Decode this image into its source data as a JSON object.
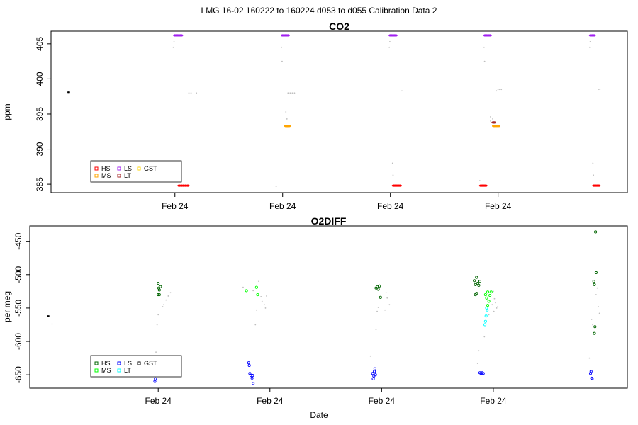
{
  "page": {
    "title": "LMG   16-02    160222 to 160224    d053 to d055   Calibration Data 2",
    "xlabel": "Date"
  },
  "colors": {
    "HS": "#ff0000",
    "MS": "#ffa500",
    "LS": "#a020f0",
    "LT": "#a52a2a",
    "GST": "#ffd700",
    "HS2": "#006400",
    "MS2": "#00ff00",
    "LS2": "#0000ff",
    "LT2": "#00ffff",
    "GST2": "#000000",
    "other": "#bebebe",
    "black": "#000000"
  },
  "chart_data": [
    {
      "type": "scatter",
      "title": "CO2",
      "ylabel": "ppm",
      "xticks": [
        "Feb 24",
        "Feb 24",
        "Feb 24",
        "Feb 24"
      ],
      "ylim": [
        383.8,
        406.8
      ],
      "yticks": [
        385,
        390,
        395,
        400,
        405
      ],
      "legend": {
        "placement": "bottom-left",
        "entries": [
          {
            "label": "HS",
            "key": "HS"
          },
          {
            "label": "MS",
            "key": "MS"
          },
          {
            "label": "LS",
            "key": "LS"
          },
          {
            "label": "LT",
            "key": "LT"
          },
          {
            "label": "GST",
            "key": "GST"
          }
        ]
      },
      "points": [
        {
          "x": 0.01,
          "y": 398.1,
          "c": "black"
        },
        {
          "x": 0.018,
          "y": 398.1,
          "c": "black"
        },
        {
          "x": 1.0,
          "y": 406.2,
          "c": "LS"
        },
        {
          "x": 1.012,
          "y": 406.2,
          "c": "LS"
        },
        {
          "x": 1.024,
          "y": 406.2,
          "c": "LS"
        },
        {
          "x": 1.036,
          "y": 406.2,
          "c": "LS"
        },
        {
          "x": 1.05,
          "y": 406.2,
          "c": "LS"
        },
        {
          "x": 1.06,
          "y": 406.2,
          "c": "LS"
        },
        {
          "x": 0.985,
          "y": 404.5,
          "c": "other"
        },
        {
          "x": 0.992,
          "y": 405.3,
          "c": "other"
        },
        {
          "x": 1.13,
          "y": 398.0,
          "c": "other"
        },
        {
          "x": 1.15,
          "y": 398.0,
          "c": "other"
        },
        {
          "x": 1.2,
          "y": 398.0,
          "c": "other"
        },
        {
          "x": 1.04,
          "y": 384.8,
          "c": "HS"
        },
        {
          "x": 1.06,
          "y": 384.8,
          "c": "HS"
        },
        {
          "x": 1.08,
          "y": 384.8,
          "c": "HS"
        },
        {
          "x": 1.1,
          "y": 384.8,
          "c": "HS"
        },
        {
          "x": 1.12,
          "y": 384.8,
          "c": "HS"
        },
        {
          "x": 2.0,
          "y": 406.2,
          "c": "LS"
        },
        {
          "x": 2.012,
          "y": 406.2,
          "c": "LS"
        },
        {
          "x": 2.024,
          "y": 406.2,
          "c": "LS"
        },
        {
          "x": 2.036,
          "y": 406.2,
          "c": "LS"
        },
        {
          "x": 2.05,
          "y": 406.2,
          "c": "LS"
        },
        {
          "x": 1.99,
          "y": 404.5,
          "c": "other"
        },
        {
          "x": 1.995,
          "y": 402.5,
          "c": "other"
        },
        {
          "x": 2.03,
          "y": 395.3,
          "c": "other"
        },
        {
          "x": 2.04,
          "y": 394.3,
          "c": "other"
        },
        {
          "x": 2.03,
          "y": 393.3,
          "c": "MS"
        },
        {
          "x": 2.04,
          "y": 393.3,
          "c": "MS"
        },
        {
          "x": 2.05,
          "y": 393.3,
          "c": "MS"
        },
        {
          "x": 2.06,
          "y": 393.3,
          "c": "MS"
        },
        {
          "x": 1.94,
          "y": 384.7,
          "c": "other"
        },
        {
          "x": 2.05,
          "y": 398.0,
          "c": "other"
        },
        {
          "x": 2.07,
          "y": 398.0,
          "c": "other"
        },
        {
          "x": 2.09,
          "y": 398.0,
          "c": "other"
        },
        {
          "x": 2.11,
          "y": 398.0,
          "c": "other"
        },
        {
          "x": 3.0,
          "y": 406.2,
          "c": "LS"
        },
        {
          "x": 3.012,
          "y": 406.2,
          "c": "LS"
        },
        {
          "x": 3.024,
          "y": 406.2,
          "c": "LS"
        },
        {
          "x": 3.036,
          "y": 406.2,
          "c": "LS"
        },
        {
          "x": 3.05,
          "y": 406.2,
          "c": "LS"
        },
        {
          "x": 2.99,
          "y": 404.5,
          "c": "other"
        },
        {
          "x": 2.995,
          "y": 405.3,
          "c": "other"
        },
        {
          "x": 3.1,
          "y": 398.3,
          "c": "other"
        },
        {
          "x": 3.115,
          "y": 398.3,
          "c": "other"
        },
        {
          "x": 3.02,
          "y": 388.0,
          "c": "other"
        },
        {
          "x": 3.025,
          "y": 386.3,
          "c": "other"
        },
        {
          "x": 3.03,
          "y": 384.8,
          "c": "HS"
        },
        {
          "x": 3.045,
          "y": 384.8,
          "c": "HS"
        },
        {
          "x": 3.06,
          "y": 384.8,
          "c": "HS"
        },
        {
          "x": 3.075,
          "y": 384.8,
          "c": "HS"
        },
        {
          "x": 3.09,
          "y": 384.8,
          "c": "HS"
        },
        {
          "x": 3.84,
          "y": 384.8,
          "c": "HS"
        },
        {
          "x": 3.855,
          "y": 384.8,
          "c": "HS"
        },
        {
          "x": 3.87,
          "y": 384.8,
          "c": "HS"
        },
        {
          "x": 3.885,
          "y": 384.8,
          "c": "HS"
        },
        {
          "x": 3.83,
          "y": 385.5,
          "c": "other"
        },
        {
          "x": 3.88,
          "y": 406.2,
          "c": "LS"
        },
        {
          "x": 3.895,
          "y": 406.2,
          "c": "LS"
        },
        {
          "x": 3.91,
          "y": 406.2,
          "c": "LS"
        },
        {
          "x": 3.925,
          "y": 406.2,
          "c": "LS"
        },
        {
          "x": 3.87,
          "y": 404.5,
          "c": "other"
        },
        {
          "x": 3.875,
          "y": 402.5,
          "c": "other"
        },
        {
          "x": 3.93,
          "y": 394.6,
          "c": "other"
        },
        {
          "x": 3.95,
          "y": 394.3,
          "c": "other"
        },
        {
          "x": 3.93,
          "y": 394.0,
          "c": "other"
        },
        {
          "x": 3.955,
          "y": 393.8,
          "c": "LT"
        },
        {
          "x": 3.965,
          "y": 393.8,
          "c": "LT"
        },
        {
          "x": 3.96,
          "y": 393.3,
          "c": "MS"
        },
        {
          "x": 3.975,
          "y": 393.3,
          "c": "MS"
        },
        {
          "x": 3.99,
          "y": 393.3,
          "c": "MS"
        },
        {
          "x": 4.005,
          "y": 393.3,
          "c": "MS"
        },
        {
          "x": 3.985,
          "y": 398.3,
          "c": "other"
        },
        {
          "x": 4.0,
          "y": 398.5,
          "c": "other"
        },
        {
          "x": 4.015,
          "y": 398.5,
          "c": "other"
        },
        {
          "x": 4.03,
          "y": 398.5,
          "c": "other"
        },
        {
          "x": 4.86,
          "y": 406.2,
          "c": "LS"
        },
        {
          "x": 4.875,
          "y": 406.2,
          "c": "LS"
        },
        {
          "x": 4.89,
          "y": 406.2,
          "c": "LS"
        },
        {
          "x": 4.85,
          "y": 404.5,
          "c": "other"
        },
        {
          "x": 4.855,
          "y": 405.3,
          "c": "other"
        },
        {
          "x": 4.93,
          "y": 398.5,
          "c": "other"
        },
        {
          "x": 4.945,
          "y": 398.5,
          "c": "other"
        },
        {
          "x": 4.88,
          "y": 388.0,
          "c": "other"
        },
        {
          "x": 4.885,
          "y": 386.3,
          "c": "other"
        },
        {
          "x": 4.89,
          "y": 384.8,
          "c": "HS"
        },
        {
          "x": 4.905,
          "y": 384.8,
          "c": "HS"
        },
        {
          "x": 4.92,
          "y": 384.8,
          "c": "HS"
        },
        {
          "x": 4.935,
          "y": 384.8,
          "c": "HS"
        }
      ]
    },
    {
      "type": "scatter",
      "title": "O2DIFF",
      "ylabel": "per meg",
      "xticks": [
        "Feb 24",
        "Feb 24",
        "Feb 24",
        "Feb 24"
      ],
      "ylim": [
        -670,
        -427
      ],
      "yticks": [
        -450,
        -500,
        -550,
        -600,
        -650
      ],
      "legend": {
        "placement": "bottom-left",
        "entries": [
          {
            "label": "HS",
            "key": "HS2"
          },
          {
            "label": "MS",
            "key": "MS2"
          },
          {
            "label": "LS",
            "key": "LS2"
          },
          {
            "label": "LT",
            "key": "LT2"
          },
          {
            "label": "GST",
            "key": "GST2"
          }
        ]
      },
      "points": [
        {
          "x": 0.01,
          "y": -562,
          "c": "black"
        },
        {
          "x": 0.018,
          "y": -562,
          "c": "black"
        },
        {
          "x": 0.05,
          "y": -574,
          "c": "other"
        },
        {
          "x": 0.97,
          "y": -660,
          "c": "LS2"
        },
        {
          "x": 0.975,
          "y": -656,
          "c": "LS2"
        },
        {
          "x": 0.98,
          "y": -616,
          "c": "other"
        },
        {
          "x": 0.99,
          "y": -575,
          "c": "other"
        },
        {
          "x": 1.0,
          "y": -513,
          "c": "HS2"
        },
        {
          "x": 1.005,
          "y": -520,
          "c": "HS2"
        },
        {
          "x": 1.01,
          "y": -523,
          "c": "HS2"
        },
        {
          "x": 1.02,
          "y": -518,
          "c": "HS2"
        },
        {
          "x": 1.0,
          "y": -530,
          "c": "HS2"
        },
        {
          "x": 1.01,
          "y": -530,
          "c": "HS2"
        },
        {
          "x": 1.0,
          "y": -560,
          "c": "other"
        },
        {
          "x": 1.05,
          "y": -545,
          "c": "other"
        },
        {
          "x": 1.07,
          "y": -538,
          "c": "other"
        },
        {
          "x": 1.09,
          "y": -532,
          "c": "other"
        },
        {
          "x": 1.11,
          "y": -527,
          "c": "other"
        },
        {
          "x": 1.04,
          "y": -548,
          "c": "other"
        },
        {
          "x": 1.76,
          "y": -519,
          "c": "other"
        },
        {
          "x": 1.79,
          "y": -524,
          "c": "MS2"
        },
        {
          "x": 1.85,
          "y": -524,
          "c": "other"
        },
        {
          "x": 1.88,
          "y": -519,
          "c": "MS2"
        },
        {
          "x": 1.89,
          "y": -530,
          "c": "MS2"
        },
        {
          "x": 1.9,
          "y": -510,
          "c": "other"
        },
        {
          "x": 1.92,
          "y": -533,
          "c": "other"
        },
        {
          "x": 1.93,
          "y": -540,
          "c": "other"
        },
        {
          "x": 1.95,
          "y": -545,
          "c": "other"
        },
        {
          "x": 1.96,
          "y": -550,
          "c": "other"
        },
        {
          "x": 1.97,
          "y": -532,
          "c": "other"
        },
        {
          "x": 1.88,
          "y": -553,
          "c": "other"
        },
        {
          "x": 1.87,
          "y": -575,
          "c": "other"
        },
        {
          "x": 1.81,
          "y": -632,
          "c": "LS2"
        },
        {
          "x": 1.815,
          "y": -636,
          "c": "LS2"
        },
        {
          "x": 1.82,
          "y": -648,
          "c": "LS2"
        },
        {
          "x": 1.83,
          "y": -651,
          "c": "LS2"
        },
        {
          "x": 1.84,
          "y": -655,
          "c": "LS2"
        },
        {
          "x": 1.845,
          "y": -651,
          "c": "LS2"
        },
        {
          "x": 1.85,
          "y": -663,
          "c": "LS2"
        },
        {
          "x": 2.9,
          "y": -622,
          "c": "other"
        },
        {
          "x": 2.92,
          "y": -648,
          "c": "LS2"
        },
        {
          "x": 2.93,
          "y": -652,
          "c": "LS2"
        },
        {
          "x": 2.94,
          "y": -641,
          "c": "LS2"
        },
        {
          "x": 2.935,
          "y": -645,
          "c": "LS2"
        },
        {
          "x": 2.945,
          "y": -650,
          "c": "LS2"
        },
        {
          "x": 2.925,
          "y": -656,
          "c": "LS2"
        },
        {
          "x": 2.95,
          "y": -582,
          "c": "other"
        },
        {
          "x": 2.96,
          "y": -555,
          "c": "other"
        },
        {
          "x": 2.97,
          "y": -549,
          "c": "other"
        },
        {
          "x": 2.95,
          "y": -520,
          "c": "HS2"
        },
        {
          "x": 2.96,
          "y": -518,
          "c": "HS2"
        },
        {
          "x": 2.97,
          "y": -522,
          "c": "HS2"
        },
        {
          "x": 2.98,
          "y": -517,
          "c": "HS2"
        },
        {
          "x": 2.99,
          "y": -534,
          "c": "HS2"
        },
        {
          "x": 3.03,
          "y": -553,
          "c": "other"
        },
        {
          "x": 3.05,
          "y": -535,
          "c": "other"
        },
        {
          "x": 3.07,
          "y": -545,
          "c": "other"
        },
        {
          "x": 3.04,
          "y": -527,
          "c": "other"
        },
        {
          "x": 3.83,
          "y": -509,
          "c": "HS2"
        },
        {
          "x": 3.84,
          "y": -515,
          "c": "HS2"
        },
        {
          "x": 3.85,
          "y": -504,
          "c": "HS2"
        },
        {
          "x": 3.86,
          "y": -513,
          "c": "HS2"
        },
        {
          "x": 3.87,
          "y": -516,
          "c": "HS2"
        },
        {
          "x": 3.88,
          "y": -510,
          "c": "HS2"
        },
        {
          "x": 3.84,
          "y": -530,
          "c": "HS2"
        },
        {
          "x": 3.85,
          "y": -528,
          "c": "HS2"
        },
        {
          "x": 3.87,
          "y": -614,
          "c": "other"
        },
        {
          "x": 3.86,
          "y": -633,
          "c": "other"
        },
        {
          "x": 3.88,
          "y": -647,
          "c": "LS2"
        },
        {
          "x": 3.89,
          "y": -648,
          "c": "LS2"
        },
        {
          "x": 3.9,
          "y": -647,
          "c": "LS2"
        },
        {
          "x": 3.91,
          "y": -648,
          "c": "LS2"
        },
        {
          "x": 3.92,
          "y": -593,
          "c": "other"
        },
        {
          "x": 3.93,
          "y": -530,
          "c": "MS2"
        },
        {
          "x": 3.94,
          "y": -535,
          "c": "MS2"
        },
        {
          "x": 3.95,
          "y": -526,
          "c": "MS2"
        },
        {
          "x": 3.96,
          "y": -540,
          "c": "MS2"
        },
        {
          "x": 3.97,
          "y": -531,
          "c": "MS2"
        },
        {
          "x": 3.98,
          "y": -526,
          "c": "MS2"
        },
        {
          "x": 3.95,
          "y": -546,
          "c": "MS2"
        },
        {
          "x": 3.94,
          "y": -550,
          "c": "LT2"
        },
        {
          "x": 3.945,
          "y": -553,
          "c": "LT2"
        },
        {
          "x": 3.935,
          "y": -562,
          "c": "LT2"
        },
        {
          "x": 3.93,
          "y": -570,
          "c": "LT2"
        },
        {
          "x": 3.925,
          "y": -575,
          "c": "LT2"
        },
        {
          "x": 3.96,
          "y": -560,
          "c": "other"
        },
        {
          "x": 3.99,
          "y": -545,
          "c": "other"
        },
        {
          "x": 4.0,
          "y": -525,
          "c": "other"
        },
        {
          "x": 4.01,
          "y": -536,
          "c": "other"
        },
        {
          "x": 4.02,
          "y": -542,
          "c": "other"
        },
        {
          "x": 4.03,
          "y": -550,
          "c": "other"
        },
        {
          "x": 4.04,
          "y": -548,
          "c": "other"
        },
        {
          "x": 4.005,
          "y": -555,
          "c": "other"
        },
        {
          "x": 4.86,
          "y": -625,
          "c": "other"
        },
        {
          "x": 4.87,
          "y": -648,
          "c": "LS2"
        },
        {
          "x": 4.875,
          "y": -645,
          "c": "LS2"
        },
        {
          "x": 4.88,
          "y": -655,
          "c": "LS2"
        },
        {
          "x": 4.885,
          "y": -656,
          "c": "LS2"
        },
        {
          "x": 4.88,
          "y": -567,
          "c": "other"
        },
        {
          "x": 4.89,
          "y": -575,
          "c": "other"
        },
        {
          "x": 4.9,
          "y": -510,
          "c": "HS2"
        },
        {
          "x": 4.905,
          "y": -515,
          "c": "HS2"
        },
        {
          "x": 4.92,
          "y": -497,
          "c": "HS2"
        },
        {
          "x": 4.91,
          "y": -578,
          "c": "HS2"
        },
        {
          "x": 4.905,
          "y": -588,
          "c": "HS2"
        },
        {
          "x": 4.915,
          "y": -436,
          "c": "HS2"
        },
        {
          "x": 4.93,
          "y": -520,
          "c": "other"
        },
        {
          "x": 4.94,
          "y": -548,
          "c": "other"
        },
        {
          "x": 4.95,
          "y": -558,
          "c": "other"
        },
        {
          "x": 4.92,
          "y": -530,
          "c": "other"
        }
      ]
    }
  ]
}
